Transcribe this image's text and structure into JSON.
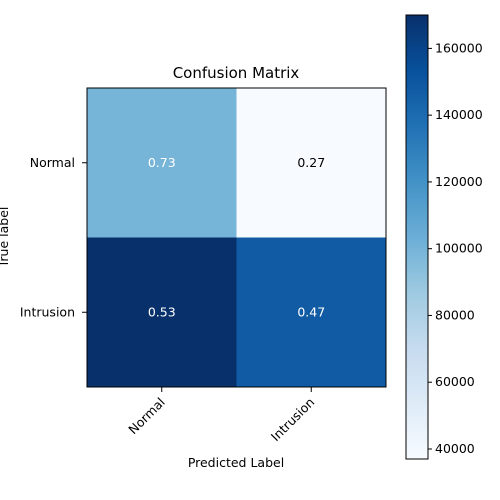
{
  "chart_data": {
    "type": "heatmap",
    "title": "Confusion Matrix",
    "xlabel": "Predicted Label",
    "ylabel": "True label",
    "x_categories": [
      "Normal",
      "Intrusion"
    ],
    "y_categories": [
      "Normal",
      "Intrusion"
    ],
    "cell_labels": [
      [
        "0.73",
        "0.27"
      ],
      [
        "0.53",
        "0.47"
      ]
    ],
    "values": [
      [
        100000,
        37000
      ],
      [
        170000,
        148000
      ]
    ],
    "colormap": "Blues",
    "colorbar": {
      "range": [
        37000,
        170000
      ],
      "ticks": [
        40000,
        60000,
        80000,
        100000,
        120000,
        140000,
        160000
      ]
    }
  }
}
